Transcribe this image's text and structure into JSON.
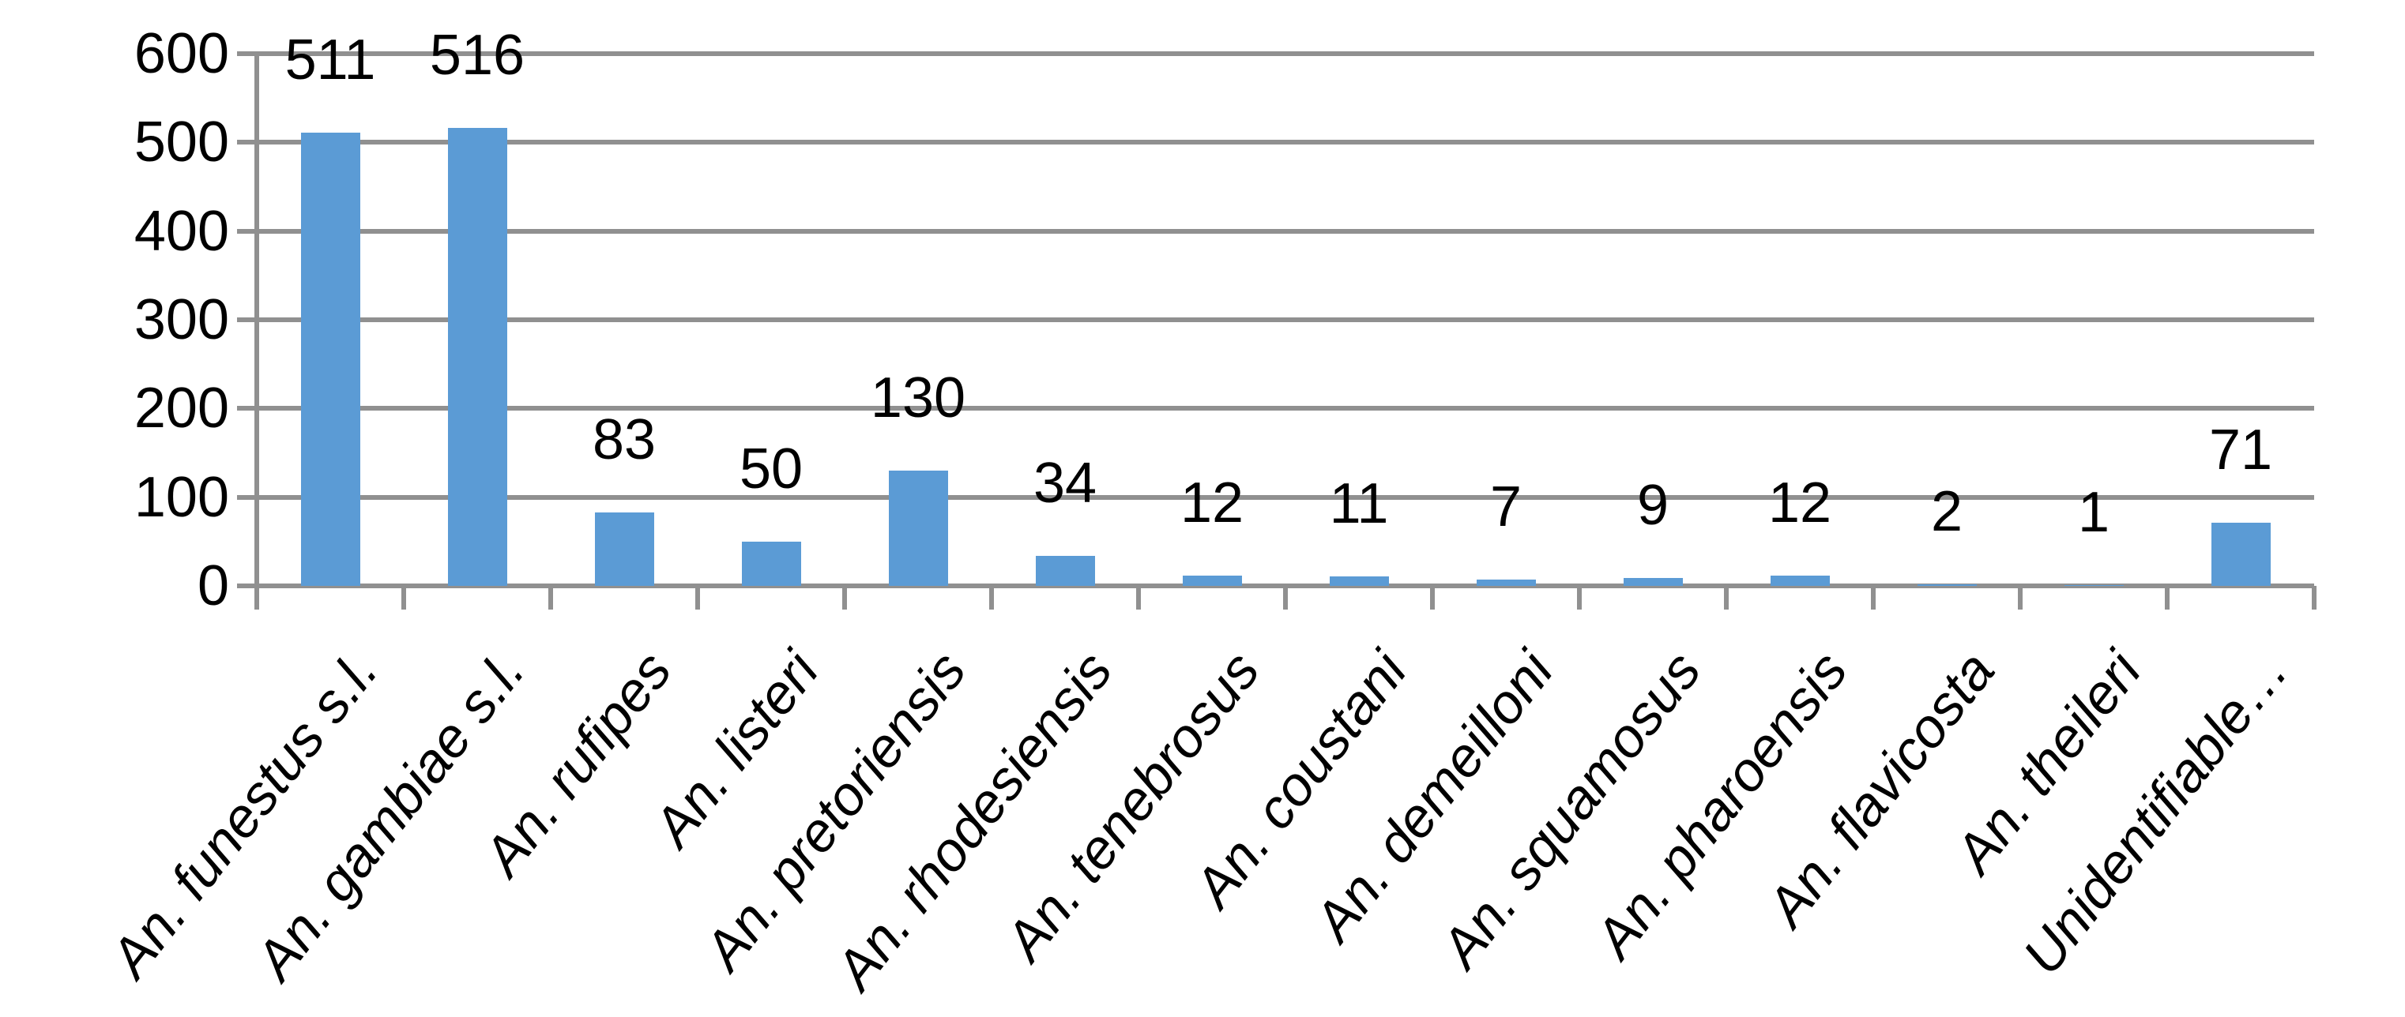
{
  "chart_data": {
    "type": "bar",
    "title": "",
    "xlabel": "",
    "ylabel": "",
    "categories": [
      "An. funestus s.l.",
      "An. gambiae s.l.",
      "An. rufipes",
      "An. listeri",
      "An. pretoriensis",
      "An. rhodesiensis",
      "An. tenebrosus",
      "An. coustani",
      "An. demeilloni",
      "An. squamosus",
      "An. pharoensis",
      "An. flavicosta",
      "An. theileri",
      "Unidentifiable…"
    ],
    "values": [
      511,
      516,
      83,
      50,
      130,
      34,
      12,
      11,
      7,
      9,
      12,
      2,
      1,
      71
    ],
    "data_labels": [
      "511",
      "516",
      "83",
      "50",
      "130",
      "34",
      "12",
      "11",
      "7",
      "9",
      "12",
      "2",
      "1",
      "71"
    ],
    "ylim": [
      0,
      600
    ],
    "yticks": [
      0,
      100,
      200,
      300,
      400,
      500,
      600
    ],
    "grid": "horizontal-major",
    "legend": "none",
    "colors": {
      "bar_fill": "#5B9BD5",
      "axis_and_grid": "#909090",
      "text": "#000000",
      "background": "#FFFFFF"
    }
  }
}
